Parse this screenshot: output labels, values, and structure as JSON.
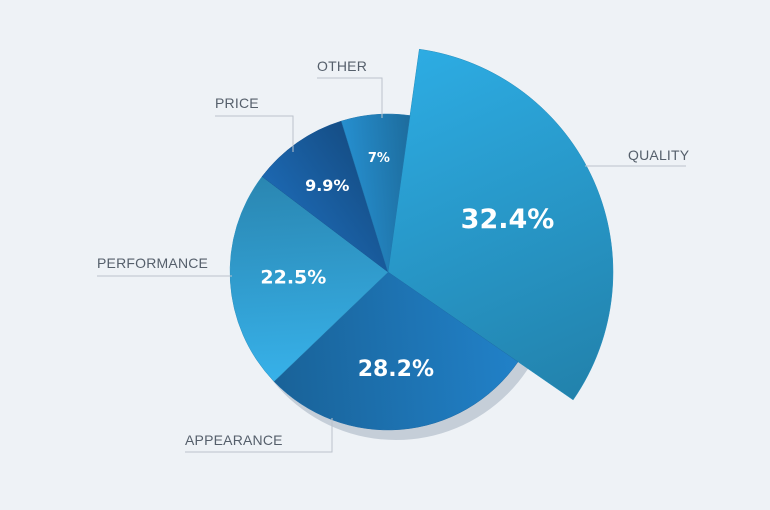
{
  "chart_data": {
    "type": "pie",
    "title": "",
    "slices": [
      {
        "label": "QUALITY",
        "value": 32.4,
        "value_label": "32.4%",
        "color": "#2a9fd2",
        "exploded": true
      },
      {
        "label": "APPEARANCE",
        "value": 28.2,
        "value_label": "28.2%",
        "color": "#1f77b9"
      },
      {
        "label": "PERFORMANCE",
        "value": 22.5,
        "value_label": "22.5%",
        "color": "#33a4d8"
      },
      {
        "label": "PRICE",
        "value": 9.9,
        "value_label": "9.9%",
        "color": "#1a5fa3"
      },
      {
        "label": "OTHER",
        "value": 7,
        "value_label": "7%",
        "color": "#2384c0"
      }
    ]
  }
}
